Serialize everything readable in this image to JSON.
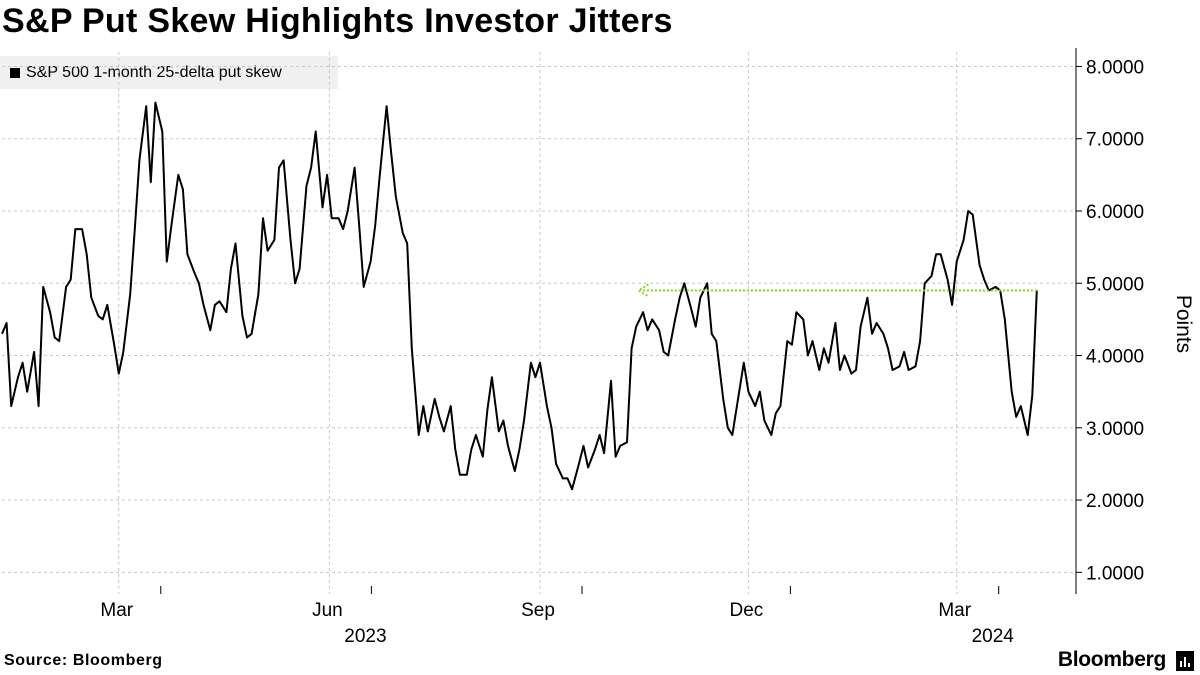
{
  "title": "S&P Put Skew Highlights Investor Jitters",
  "source": "Source: Bloomberg",
  "brand": "Bloomberg",
  "colors": {
    "line": "#000000",
    "arrow": "#8cd21e",
    "grid": "#c8c8c8"
  },
  "chart_data": {
    "type": "line",
    "title": "S&P Put Skew Highlights Investor Jitters",
    "ylabel": "Points",
    "ylim": [
      0.7,
      8.2
    ],
    "xlim": [
      "2023-01-09",
      "2024-04-09"
    ],
    "grid": true,
    "legend_position": "top-left",
    "y_ticks": [
      "1.0000",
      "2.0000",
      "3.0000",
      "4.0000",
      "5.0000",
      "6.0000",
      "7.0000",
      "8.0000"
    ],
    "x_ticks": [
      {
        "label": "Mar",
        "date": "2023-03-01",
        "year": ""
      },
      {
        "label": "Jun",
        "date": "2023-06-01",
        "year": "2023"
      },
      {
        "label": "Sep",
        "date": "2023-09-01",
        "year": ""
      },
      {
        "label": "Dec",
        "date": "2023-12-01",
        "year": ""
      },
      {
        "label": "Mar",
        "date": "2024-03-01",
        "year": "2024"
      }
    ],
    "annotation": {
      "type": "arrow",
      "from": "2024-04-05",
      "to": "2023-10-14",
      "y": 4.9
    },
    "series": [
      {
        "name": "S&P 500 1-month 25-delta put skew",
        "points": [
          [
            "2023-01-09",
            4.3
          ],
          [
            "2023-01-11",
            4.45
          ],
          [
            "2023-01-13",
            3.3
          ],
          [
            "2023-01-16",
            3.7
          ],
          [
            "2023-01-18",
            3.9
          ],
          [
            "2023-01-20",
            3.5
          ],
          [
            "2023-01-23",
            4.05
          ],
          [
            "2023-01-25",
            3.3
          ],
          [
            "2023-01-27",
            4.95
          ],
          [
            "2023-01-30",
            4.6
          ],
          [
            "2023-02-01",
            4.25
          ],
          [
            "2023-02-03",
            4.2
          ],
          [
            "2023-02-06",
            4.95
          ],
          [
            "2023-02-08",
            5.05
          ],
          [
            "2023-02-10",
            5.75
          ],
          [
            "2023-02-13",
            5.75
          ],
          [
            "2023-02-15",
            5.4
          ],
          [
            "2023-02-17",
            4.8
          ],
          [
            "2023-02-20",
            4.55
          ],
          [
            "2023-02-22",
            4.5
          ],
          [
            "2023-02-24",
            4.7
          ],
          [
            "2023-02-27",
            4.15
          ],
          [
            "2023-03-01",
            3.75
          ],
          [
            "2023-03-03",
            4.05
          ],
          [
            "2023-03-06",
            4.85
          ],
          [
            "2023-03-08",
            5.75
          ],
          [
            "2023-03-10",
            6.7
          ],
          [
            "2023-03-13",
            7.45
          ],
          [
            "2023-03-15",
            6.4
          ],
          [
            "2023-03-17",
            7.5
          ],
          [
            "2023-03-20",
            7.1
          ],
          [
            "2023-03-22",
            5.3
          ],
          [
            "2023-03-24",
            5.8
          ],
          [
            "2023-03-27",
            6.5
          ],
          [
            "2023-03-29",
            6.3
          ],
          [
            "2023-03-31",
            5.4
          ],
          [
            "2023-04-03",
            5.15
          ],
          [
            "2023-04-05",
            5.0
          ],
          [
            "2023-04-07",
            4.7
          ],
          [
            "2023-04-10",
            4.35
          ],
          [
            "2023-04-12",
            4.7
          ],
          [
            "2023-04-14",
            4.75
          ],
          [
            "2023-04-17",
            4.6
          ],
          [
            "2023-04-19",
            5.2
          ],
          [
            "2023-04-21",
            5.55
          ],
          [
            "2023-04-24",
            4.55
          ],
          [
            "2023-04-26",
            4.25
          ],
          [
            "2023-04-28",
            4.3
          ],
          [
            "2023-05-01",
            4.85
          ],
          [
            "2023-05-03",
            5.9
          ],
          [
            "2023-05-05",
            5.45
          ],
          [
            "2023-05-08",
            5.6
          ],
          [
            "2023-05-10",
            6.6
          ],
          [
            "2023-05-12",
            6.7
          ],
          [
            "2023-05-15",
            5.6
          ],
          [
            "2023-05-17",
            5.0
          ],
          [
            "2023-05-19",
            5.2
          ],
          [
            "2023-05-22",
            6.35
          ],
          [
            "2023-05-24",
            6.6
          ],
          [
            "2023-05-26",
            7.1
          ],
          [
            "2023-05-29",
            6.05
          ],
          [
            "2023-05-31",
            6.5
          ],
          [
            "2023-06-02",
            5.9
          ],
          [
            "2023-06-05",
            5.9
          ],
          [
            "2023-06-07",
            5.75
          ],
          [
            "2023-06-09",
            6.0
          ],
          [
            "2023-06-12",
            6.6
          ],
          [
            "2023-06-14",
            5.8
          ],
          [
            "2023-06-16",
            4.95
          ],
          [
            "2023-06-19",
            5.3
          ],
          [
            "2023-06-21",
            5.8
          ],
          [
            "2023-06-23",
            6.5
          ],
          [
            "2023-06-26",
            7.45
          ],
          [
            "2023-06-28",
            6.8
          ],
          [
            "2023-06-30",
            6.2
          ],
          [
            "2023-07-03",
            5.7
          ],
          [
            "2023-07-05",
            5.55
          ],
          [
            "2023-07-07",
            4.1
          ],
          [
            "2023-07-10",
            2.9
          ],
          [
            "2023-07-12",
            3.3
          ],
          [
            "2023-07-14",
            2.95
          ],
          [
            "2023-07-17",
            3.4
          ],
          [
            "2023-07-19",
            3.15
          ],
          [
            "2023-07-21",
            2.95
          ],
          [
            "2023-07-24",
            3.3
          ],
          [
            "2023-07-26",
            2.7
          ],
          [
            "2023-07-28",
            2.35
          ],
          [
            "2023-07-31",
            2.35
          ],
          [
            "2023-08-02",
            2.7
          ],
          [
            "2023-08-04",
            2.9
          ],
          [
            "2023-08-07",
            2.6
          ],
          [
            "2023-08-09",
            3.25
          ],
          [
            "2023-08-11",
            3.7
          ],
          [
            "2023-08-14",
            2.95
          ],
          [
            "2023-08-16",
            3.1
          ],
          [
            "2023-08-18",
            2.75
          ],
          [
            "2023-08-21",
            2.4
          ],
          [
            "2023-08-23",
            2.7
          ],
          [
            "2023-08-25",
            3.1
          ],
          [
            "2023-08-28",
            3.9
          ],
          [
            "2023-08-30",
            3.7
          ],
          [
            "2023-09-01",
            3.9
          ],
          [
            "2023-09-04",
            3.3
          ],
          [
            "2023-09-06",
            3.0
          ],
          [
            "2023-09-08",
            2.5
          ],
          [
            "2023-09-11",
            2.3
          ],
          [
            "2023-09-13",
            2.3
          ],
          [
            "2023-09-15",
            2.15
          ],
          [
            "2023-09-18",
            2.5
          ],
          [
            "2023-09-20",
            2.75
          ],
          [
            "2023-09-22",
            2.45
          ],
          [
            "2023-09-25",
            2.7
          ],
          [
            "2023-09-27",
            2.9
          ],
          [
            "2023-09-29",
            2.65
          ],
          [
            "2023-10-02",
            3.65
          ],
          [
            "2023-10-04",
            2.6
          ],
          [
            "2023-10-06",
            2.75
          ],
          [
            "2023-10-09",
            2.8
          ],
          [
            "2023-10-11",
            4.1
          ],
          [
            "2023-10-13",
            4.4
          ],
          [
            "2023-10-16",
            4.6
          ],
          [
            "2023-10-18",
            4.35
          ],
          [
            "2023-10-20",
            4.5
          ],
          [
            "2023-10-23",
            4.35
          ],
          [
            "2023-10-25",
            4.05
          ],
          [
            "2023-10-27",
            4.0
          ],
          [
            "2023-10-30",
            4.5
          ],
          [
            "2023-11-01",
            4.8
          ],
          [
            "2023-11-03",
            5.0
          ],
          [
            "2023-11-06",
            4.65
          ],
          [
            "2023-11-08",
            4.4
          ],
          [
            "2023-11-10",
            4.8
          ],
          [
            "2023-11-13",
            5.0
          ],
          [
            "2023-11-15",
            4.3
          ],
          [
            "2023-11-17",
            4.2
          ],
          [
            "2023-11-20",
            3.4
          ],
          [
            "2023-11-22",
            3.0
          ],
          [
            "2023-11-24",
            2.9
          ],
          [
            "2023-11-27",
            3.5
          ],
          [
            "2023-11-29",
            3.9
          ],
          [
            "2023-12-01",
            3.5
          ],
          [
            "2023-12-04",
            3.3
          ],
          [
            "2023-12-06",
            3.5
          ],
          [
            "2023-12-08",
            3.1
          ],
          [
            "2023-12-11",
            2.9
          ],
          [
            "2023-12-13",
            3.2
          ],
          [
            "2023-12-15",
            3.3
          ],
          [
            "2023-12-18",
            4.2
          ],
          [
            "2023-12-20",
            4.15
          ],
          [
            "2023-12-22",
            4.6
          ],
          [
            "2023-12-25",
            4.5
          ],
          [
            "2023-12-27",
            4.0
          ],
          [
            "2023-12-29",
            4.2
          ],
          [
            "2024-01-01",
            3.8
          ],
          [
            "2024-01-03",
            4.1
          ],
          [
            "2024-01-05",
            3.9
          ],
          [
            "2024-01-08",
            4.45
          ],
          [
            "2024-01-10",
            3.8
          ],
          [
            "2024-01-12",
            4.0
          ],
          [
            "2024-01-15",
            3.75
          ],
          [
            "2024-01-17",
            3.8
          ],
          [
            "2024-01-19",
            4.4
          ],
          [
            "2024-01-22",
            4.8
          ],
          [
            "2024-01-24",
            4.3
          ],
          [
            "2024-01-26",
            4.45
          ],
          [
            "2024-01-29",
            4.3
          ],
          [
            "2024-01-31",
            4.1
          ],
          [
            "2024-02-02",
            3.8
          ],
          [
            "2024-02-05",
            3.85
          ],
          [
            "2024-02-07",
            4.05
          ],
          [
            "2024-02-09",
            3.8
          ],
          [
            "2024-02-12",
            3.85
          ],
          [
            "2024-02-14",
            4.2
          ],
          [
            "2024-02-16",
            5.0
          ],
          [
            "2024-02-19",
            5.1
          ],
          [
            "2024-02-21",
            5.4
          ],
          [
            "2024-02-23",
            5.4
          ],
          [
            "2024-02-26",
            5.05
          ],
          [
            "2024-02-28",
            4.7
          ],
          [
            "2024-03-01",
            5.3
          ],
          [
            "2024-03-04",
            5.6
          ],
          [
            "2024-03-06",
            6.0
          ],
          [
            "2024-03-08",
            5.95
          ],
          [
            "2024-03-11",
            5.25
          ],
          [
            "2024-03-13",
            5.05
          ],
          [
            "2024-03-15",
            4.9
          ],
          [
            "2024-03-18",
            4.95
          ],
          [
            "2024-03-20",
            4.9
          ],
          [
            "2024-03-22",
            4.5
          ],
          [
            "2024-03-25",
            3.5
          ],
          [
            "2024-03-27",
            3.15
          ],
          [
            "2024-03-29",
            3.3
          ],
          [
            "2024-04-01",
            2.9
          ],
          [
            "2024-04-03",
            3.45
          ],
          [
            "2024-04-05",
            4.9
          ]
        ]
      }
    ]
  }
}
